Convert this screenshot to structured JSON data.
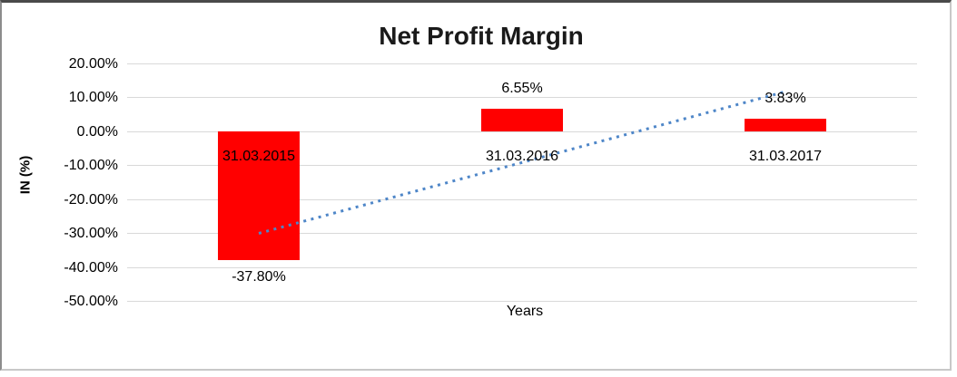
{
  "chart_data": {
    "type": "bar",
    "title": "Net Profit Margin",
    "xlabel": "Years",
    "ylabel": "IN (%)",
    "categories": [
      "31.03.2015",
      "31.03.2016",
      "31.03.2017"
    ],
    "series": [
      {
        "name": "Net Profit Margin",
        "values": [
          -37.8,
          6.55,
          3.83
        ]
      }
    ],
    "data_labels": [
      "-37.80%",
      "6.55%",
      "3.83%"
    ],
    "ylim": [
      -50,
      20
    ],
    "ytick_step": 10,
    "ytick_labels": [
      "20.00%",
      "10.00%",
      "0.00%",
      "-10.00%",
      "-20.00%",
      "-30.00%",
      "-40.00%",
      "-50.00%"
    ],
    "grid": true,
    "legend_position": "none",
    "bar_color": "#ff0000",
    "gridline_color": "#d9d9d9",
    "trendline": {
      "type": "linear",
      "line_style": "dotted",
      "color": "#4e86c8",
      "start": {
        "category_index": 0,
        "value": -30.0
      },
      "end": {
        "category_index": 2,
        "value": 11.7
      }
    }
  }
}
